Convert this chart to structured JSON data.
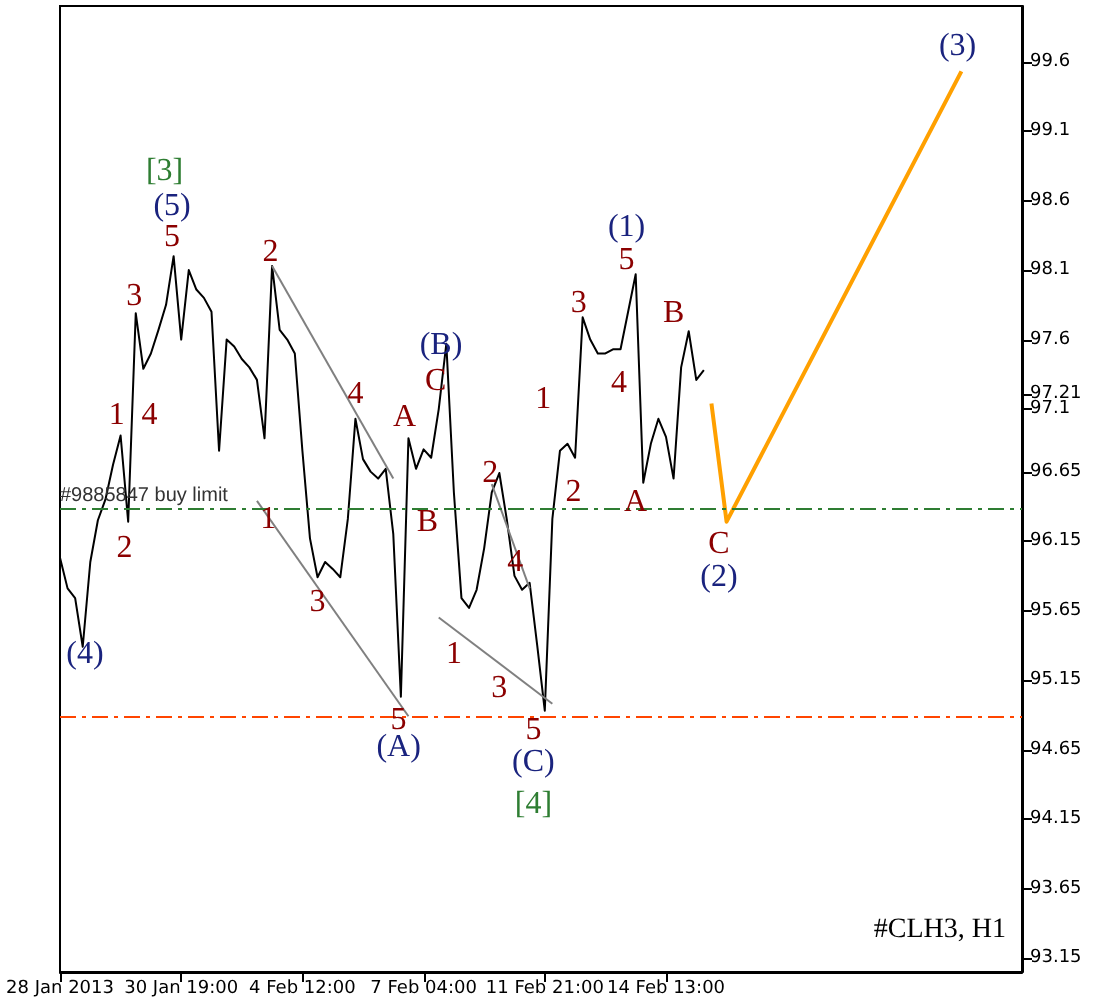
{
  "chart_data": {
    "type": "line",
    "marker": "none",
    "line_style": "solid",
    "grid": false,
    "categories": [
      "28 Jan 2013",
      null,
      null,
      null,
      null,
      null,
      null,
      null,
      null,
      null,
      null,
      null,
      null,
      null,
      null,
      null,
      "30 Jan 19:00",
      null,
      null,
      null,
      null,
      null,
      null,
      null,
      null,
      null,
      null,
      null,
      null,
      null,
      null,
      null,
      "4 Feb 12:00",
      null,
      null,
      null,
      null,
      null,
      null,
      null,
      null,
      null,
      null,
      null,
      null,
      null,
      null,
      null,
      "7 Feb 04:00",
      null,
      null,
      null,
      null,
      null,
      null,
      null,
      null,
      null,
      null,
      null,
      null,
      null,
      null,
      null,
      "11 Feb 21:00",
      null,
      null,
      null,
      null,
      null,
      null,
      null,
      null,
      null,
      null,
      null,
      null,
      null,
      null,
      null,
      "14 Feb 13:00",
      null,
      null,
      null,
      null,
      null,
      null,
      null,
      null,
      null,
      null,
      null,
      null,
      null,
      null,
      null,
      null,
      null,
      null,
      null,
      null,
      null,
      null,
      null,
      null,
      null,
      null,
      null,
      null,
      null,
      null,
      null,
      null,
      null,
      null,
      null,
      null,
      null,
      null,
      null,
      null,
      null,
      null,
      null,
      null,
      null,
      null,
      null
    ],
    "ylim": [
      93.05,
      100.0
    ],
    "yticks": [
      93.15,
      93.65,
      94.15,
      94.65,
      95.15,
      95.65,
      96.15,
      96.65,
      97.1,
      {
        "value": 97.21,
        "label": "97.21"
      },
      97.6,
      98.1,
      98.6,
      99.1,
      99.6
    ],
    "series": [
      {
        "color": "#000000",
        "values": [
          96.03,
          95.81,
          95.74,
          95.39,
          96.0,
          96.3,
          96.45,
          96.7,
          96.91,
          96.29,
          97.79,
          97.39,
          97.5,
          97.67,
          97.85,
          98.2,
          97.6,
          98.1,
          97.96,
          97.9,
          97.8,
          96.8,
          97.6,
          97.55,
          97.46,
          97.4,
          97.31,
          96.89,
          98.13,
          97.67,
          97.6,
          97.5,
          96.8,
          96.17,
          95.89,
          96.0,
          95.95,
          95.89,
          96.31,
          97.03,
          96.74,
          96.65,
          96.6,
          96.67,
          96.2,
          95.03,
          96.89,
          96.67,
          96.81,
          96.75,
          97.1,
          97.57,
          96.5,
          95.74,
          95.67,
          95.8,
          96.1,
          96.5,
          96.64,
          96.3,
          95.9,
          95.8,
          95.85,
          95.4,
          94.93,
          96.31,
          96.8,
          96.85,
          96.75,
          97.76,
          97.6,
          97.5,
          97.5,
          97.53,
          97.53,
          97.8,
          98.07,
          96.57,
          96.85,
          97.03,
          96.9,
          96.6,
          97.4,
          97.66,
          97.31,
          97.38,
          null,
          null,
          null,
          null,
          null,
          null,
          null,
          null,
          null,
          null,
          null,
          null,
          null,
          null,
          null,
          null,
          null,
          null,
          null,
          null,
          null,
          null,
          null,
          null,
          null,
          null,
          null,
          null,
          null,
          null,
          null,
          null,
          null,
          null,
          null,
          null,
          null,
          null,
          null,
          null,
          null,
          null
        ]
      },
      {
        "color": "#ffa000",
        "values": [
          null,
          null,
          null,
          null,
          null,
          null,
          null,
          null,
          null,
          null,
          null,
          null,
          null,
          null,
          null,
          null,
          null,
          null,
          null,
          null,
          null,
          null,
          null,
          null,
          null,
          null,
          null,
          null,
          null,
          null,
          null,
          null,
          null,
          null,
          null,
          null,
          null,
          null,
          null,
          null,
          null,
          null,
          null,
          null,
          null,
          null,
          null,
          null,
          null,
          null,
          null,
          null,
          null,
          null,
          null,
          null,
          null,
          null,
          null,
          null,
          null,
          null,
          null,
          null,
          null,
          null,
          null,
          null,
          null,
          null,
          null,
          null,
          null,
          null,
          null,
          null,
          null,
          null,
          null,
          null,
          null,
          null,
          null,
          null,
          null,
          null,
          97.14,
          null,
          96.29,
          null,
          null,
          null,
          null,
          null,
          null,
          null,
          null,
          null,
          null,
          null,
          null,
          null,
          null,
          null,
          null,
          null,
          null,
          null,
          null,
          null,
          null,
          null,
          null,
          null,
          null,
          null,
          null,
          null,
          null,
          99.53,
          null,
          null,
          null,
          null,
          null,
          null,
          null,
          null
        ]
      },
      {
        "color": "#808080",
        "values": [
          null,
          null,
          null,
          null,
          null,
          null,
          null,
          null,
          null,
          null,
          null,
          null,
          null,
          null,
          null,
          null,
          null,
          null,
          null,
          null,
          null,
          null,
          null,
          null,
          null,
          null,
          null,
          null,
          98.13,
          null,
          null,
          null,
          null,
          null,
          null,
          null,
          null,
          null,
          null,
          null,
          null,
          null,
          null,
          null,
          96.6,
          null,
          null,
          null,
          null,
          null,
          null,
          null,
          null,
          null,
          null,
          null,
          null,
          null,
          null,
          null,
          null,
          null,
          null,
          null,
          null,
          null,
          null,
          null,
          null,
          null,
          null,
          null,
          null,
          null,
          null,
          null,
          null,
          null,
          null,
          null,
          null,
          null,
          null,
          null,
          null,
          null,
          null,
          null,
          null,
          null,
          null,
          null,
          null,
          null,
          null,
          null,
          null,
          null,
          null,
          null,
          null,
          null,
          null,
          null,
          null,
          null,
          null,
          null,
          null,
          null,
          null,
          null,
          null,
          null,
          null,
          null,
          null,
          null,
          null,
          null,
          null,
          null,
          null,
          null,
          null,
          null,
          null,
          null
        ]
      },
      {
        "color": "#808080",
        "values": [
          null,
          null,
          null,
          null,
          null,
          null,
          null,
          null,
          null,
          null,
          null,
          null,
          null,
          null,
          null,
          null,
          null,
          null,
          null,
          null,
          null,
          null,
          null,
          null,
          null,
          null,
          96.44,
          null,
          null,
          null,
          null,
          null,
          null,
          null,
          null,
          null,
          null,
          null,
          null,
          null,
          null,
          null,
          null,
          null,
          null,
          null,
          94.89,
          null,
          null,
          null,
          null,
          null,
          null,
          null,
          null,
          null,
          null,
          null,
          null,
          null,
          null,
          null,
          null,
          null,
          null,
          null,
          null,
          null,
          null,
          null,
          null,
          null,
          null,
          null,
          null,
          null,
          null,
          null,
          null,
          null,
          null,
          null,
          null,
          null,
          null,
          null,
          null,
          null,
          null,
          null,
          null,
          null,
          null,
          null,
          null,
          null,
          null,
          null,
          null,
          null,
          null,
          null,
          null,
          null,
          null,
          null,
          null,
          null,
          null,
          null,
          null,
          null,
          null,
          null,
          null,
          null,
          null,
          null,
          null,
          null,
          null,
          null,
          null,
          null,
          null,
          null,
          null,
          null
        ]
      },
      {
        "color": "#808080",
        "values": [
          null,
          null,
          null,
          null,
          null,
          null,
          null,
          null,
          null,
          null,
          null,
          null,
          null,
          null,
          null,
          null,
          null,
          null,
          null,
          null,
          null,
          null,
          null,
          null,
          null,
          null,
          null,
          null,
          null,
          null,
          null,
          null,
          null,
          null,
          null,
          null,
          null,
          null,
          null,
          null,
          null,
          null,
          null,
          null,
          null,
          null,
          null,
          null,
          null,
          null,
          null,
          null,
          null,
          null,
          null,
          null,
          null,
          96.56,
          null,
          null,
          null,
          null,
          95.81,
          null,
          null,
          null,
          null,
          null,
          null,
          null,
          null,
          null,
          null,
          null,
          null,
          null,
          null,
          null,
          null,
          null,
          null,
          null,
          null,
          null,
          null,
          null,
          null,
          null,
          null,
          null,
          null,
          null,
          null,
          null,
          null,
          null,
          null,
          null,
          null,
          null,
          null,
          null,
          null,
          null,
          null,
          null,
          null,
          null,
          null,
          null,
          null,
          null,
          null,
          null,
          null,
          null,
          null,
          null,
          null,
          null,
          null,
          null,
          null,
          null,
          null,
          null,
          null,
          null
        ]
      },
      {
        "color": "#808080",
        "values": [
          null,
          null,
          null,
          null,
          null,
          null,
          null,
          null,
          null,
          null,
          null,
          null,
          null,
          null,
          null,
          null,
          null,
          null,
          null,
          null,
          null,
          null,
          null,
          null,
          null,
          null,
          null,
          null,
          null,
          null,
          null,
          null,
          null,
          null,
          null,
          null,
          null,
          null,
          null,
          null,
          null,
          null,
          null,
          null,
          null,
          null,
          null,
          null,
          null,
          null,
          95.6,
          null,
          null,
          null,
          null,
          null,
          null,
          null,
          null,
          null,
          null,
          null,
          null,
          null,
          null,
          94.98,
          null,
          null,
          null,
          null,
          null,
          null,
          null,
          null,
          null,
          null,
          null,
          null,
          null,
          null,
          null,
          null,
          null,
          null,
          null,
          null,
          null,
          null,
          null,
          null,
          null,
          null,
          null,
          null,
          null,
          null,
          null,
          null,
          null,
          null,
          null,
          null,
          null,
          null,
          null,
          null,
          null,
          null,
          null,
          null,
          null,
          null,
          null,
          null,
          null,
          null,
          null,
          null,
          null,
          null,
          null,
          null,
          null,
          null,
          null,
          null,
          null,
          null
        ]
      }
    ],
    "ref_lines": [
      {
        "axis": "y",
        "value": 96.39,
        "label": "#9885847 buy limit",
        "color": "#2e7d32",
        "line_style": "dashed"
      },
      {
        "axis": "y",
        "value": 94.89,
        "color": "#ff4500",
        "line_style": "dashed"
      }
    ],
    "annotations": [
      "[3]",
      "(5)",
      "5",
      "3",
      "1",
      "4",
      "2",
      "(4)",
      "2",
      "4",
      "1",
      "3",
      "5",
      "(A)",
      "A",
      "B",
      "(B)",
      "C",
      {
        "text": "2",
        "y": 96.64
      },
      {
        "text": "4",
        "y": 96.0
      },
      "1",
      "3",
      "5",
      "(C)",
      "[4]",
      "1",
      "2",
      "3",
      "(1)",
      "5",
      "4",
      "B",
      "A",
      "C",
      "(2)",
      "(3)",
      "#CLH3, H1"
    ]
  }
}
